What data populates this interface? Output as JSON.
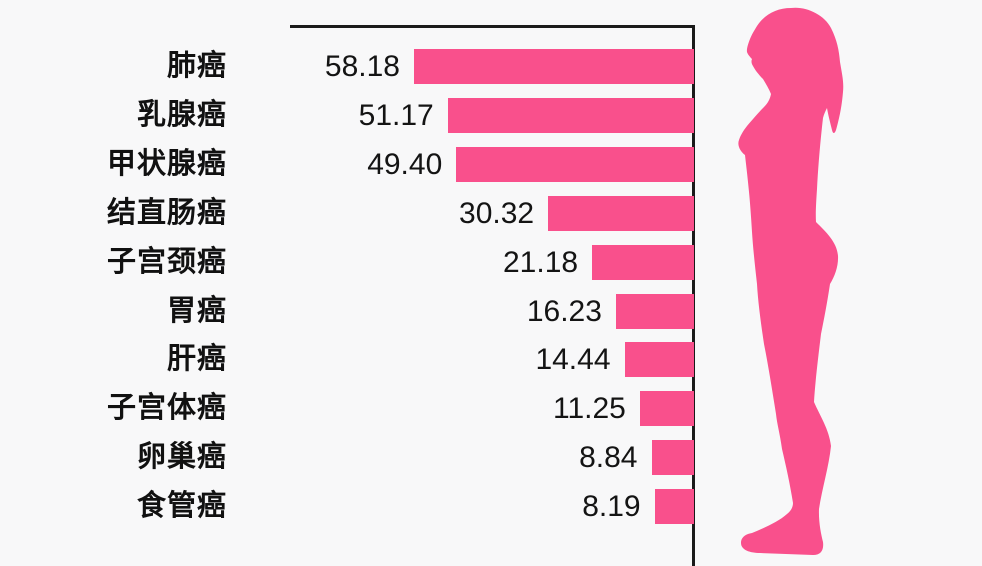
{
  "chart_data": {
    "type": "bar",
    "orientation": "horizontal-right-anchored",
    "categories": [
      "肺癌",
      "乳腺癌",
      "甲状腺癌",
      "结直肠癌",
      "子宫颈癌",
      "胃癌",
      "肝癌",
      "子宫体癌",
      "卵巢癌",
      "食管癌"
    ],
    "values": [
      58.18,
      51.17,
      49.4,
      30.32,
      21.18,
      16.23,
      14.44,
      11.25,
      8.84,
      8.19
    ],
    "value_labels": [
      "58.18",
      "51.17",
      "49.40",
      "30.32",
      "21.18",
      "16.23",
      "14.44",
      "11.25",
      "8.84",
      "8.19"
    ],
    "title": "",
    "xlabel": "",
    "ylabel": "",
    "xlim": [
      0,
      84
    ],
    "grid": false,
    "legend": "none",
    "bar_color": "#F9508C",
    "axis_color": "#1A1A1A",
    "text_color": "#111111"
  },
  "figure": {
    "name": "female-profile-silhouette",
    "color": "#F9508C"
  }
}
